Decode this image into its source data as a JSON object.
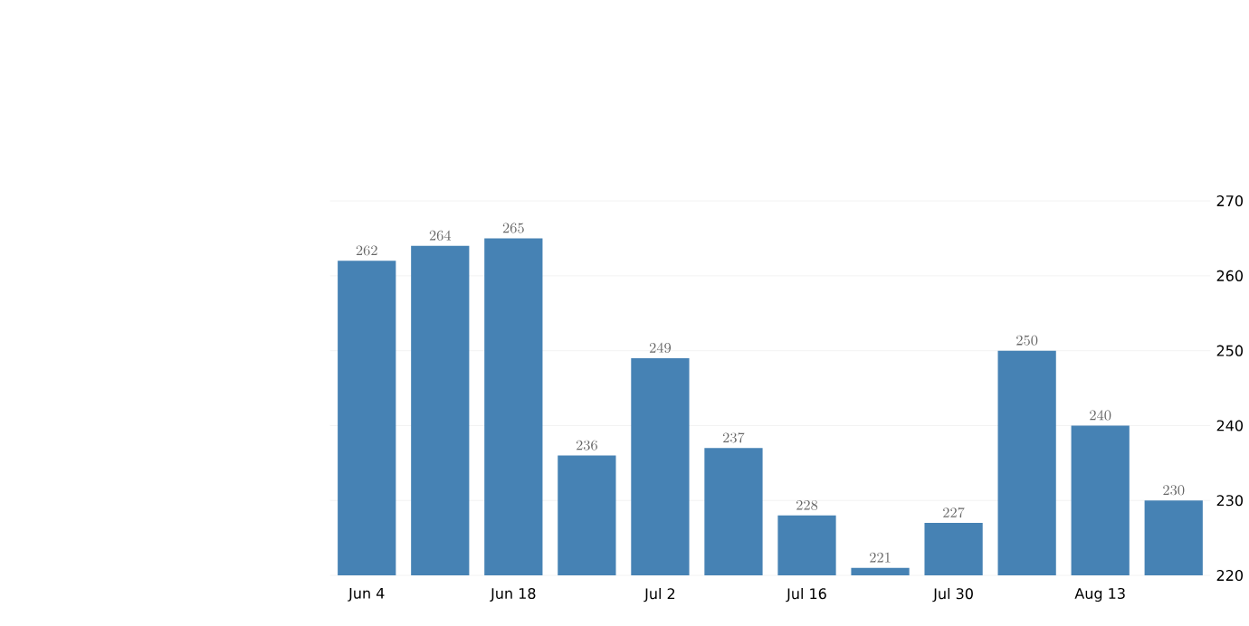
{
  "chart_data": {
    "type": "bar",
    "categories": [
      "Jun 4",
      null,
      "Jun 18",
      null,
      "Jul 2",
      null,
      "Jul 16",
      null,
      "Jul 30",
      null,
      "Aug 13",
      null
    ],
    "values": [
      262,
      264,
      265,
      236,
      249,
      237,
      228,
      221,
      227,
      250,
      240,
      230
    ],
    "color": "#4682b4",
    "ylim": [
      220,
      270
    ],
    "yticks": [
      220,
      230,
      240,
      250,
      260,
      270
    ],
    "grid": "y",
    "data_labels": true
  }
}
